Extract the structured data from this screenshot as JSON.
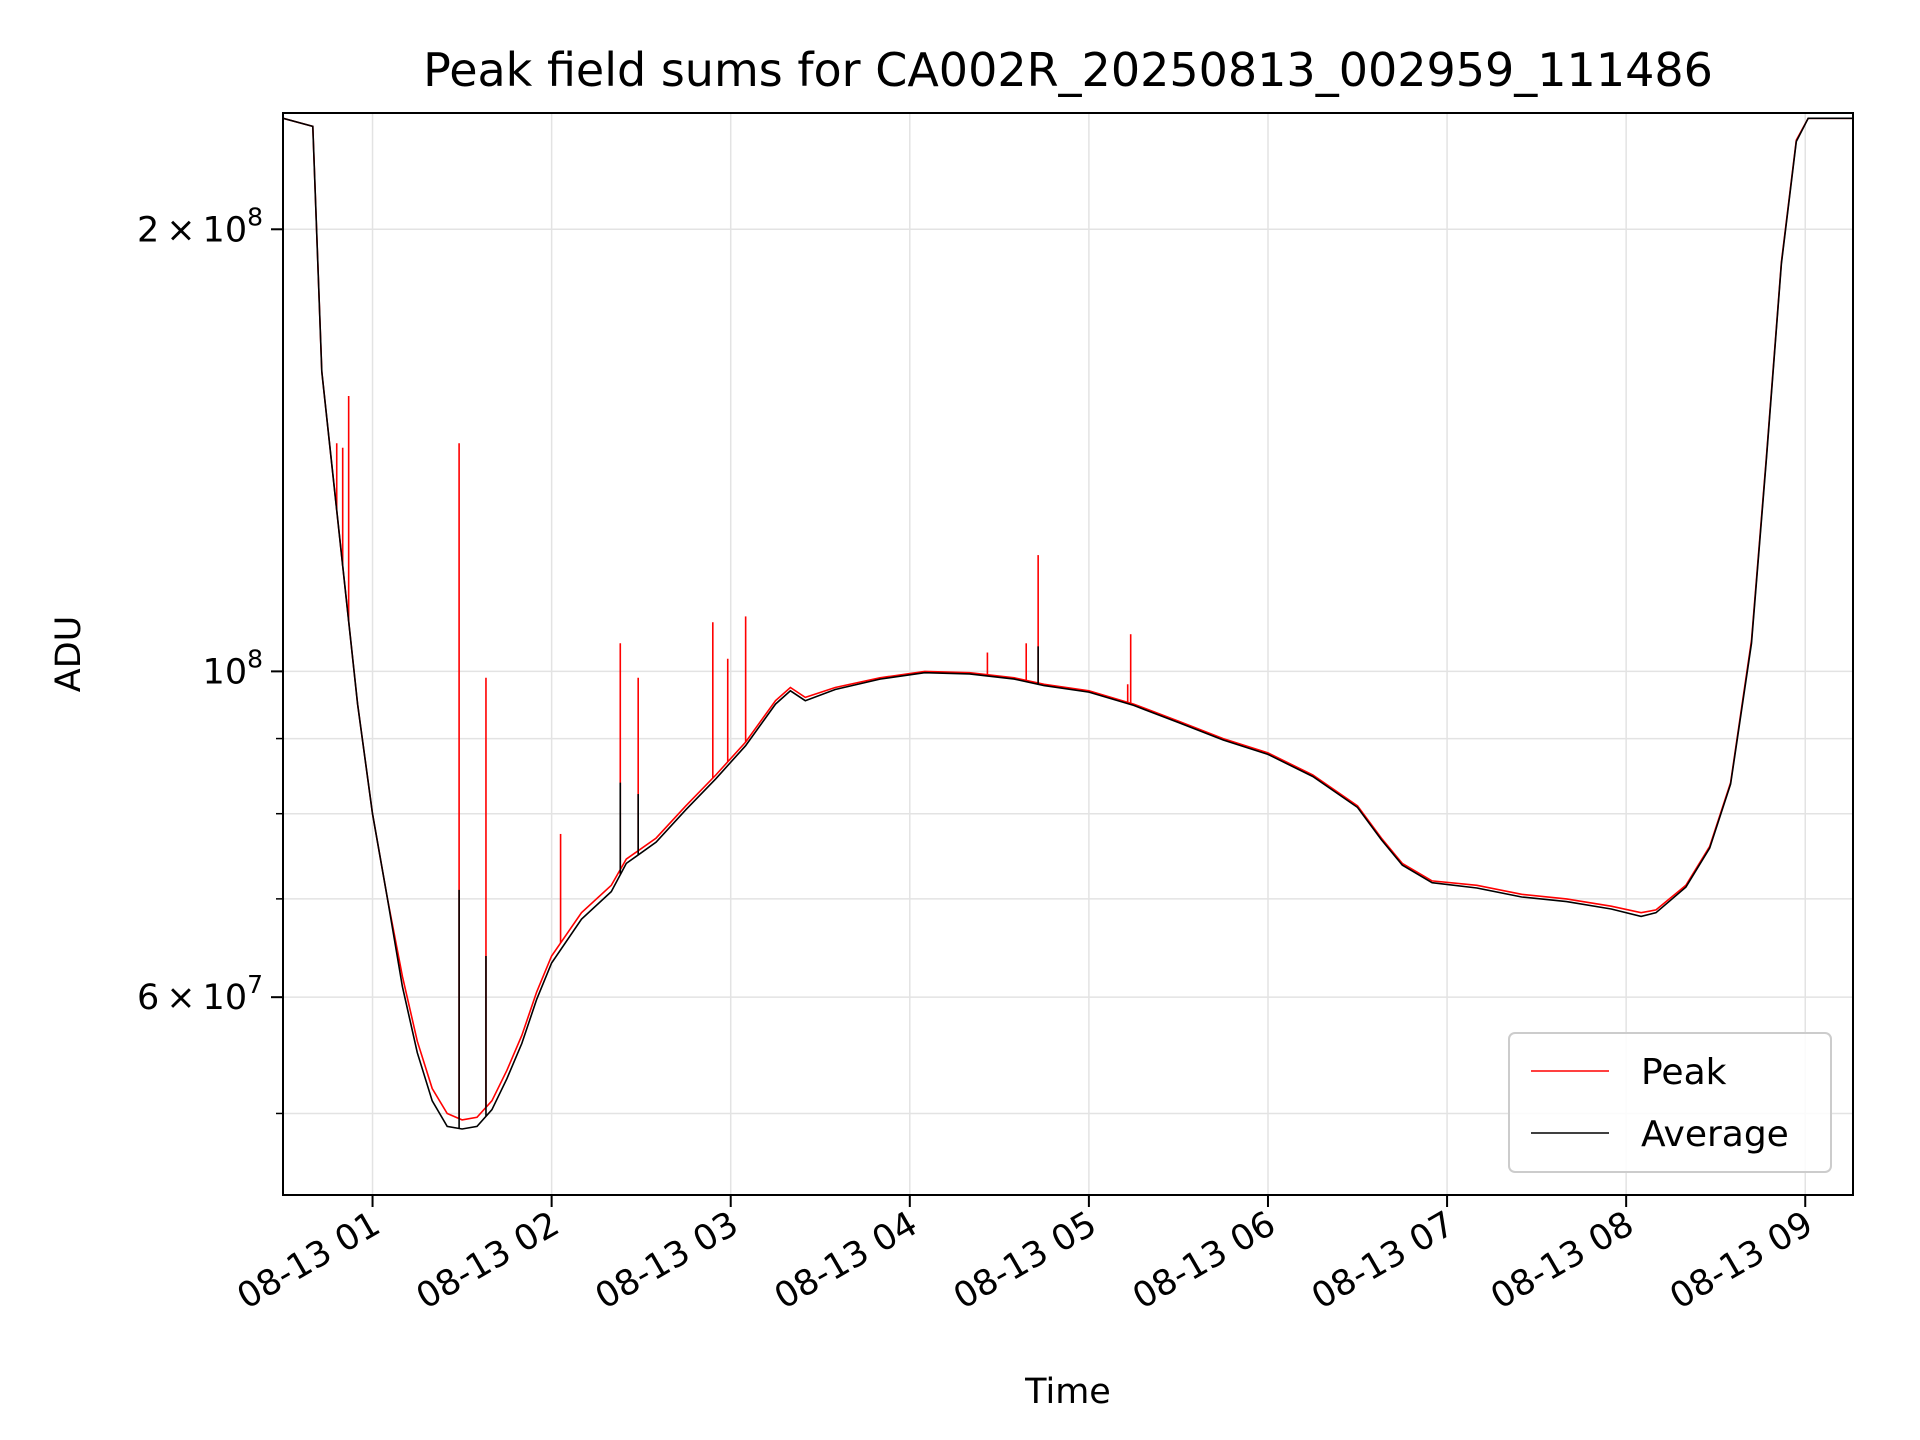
{
  "chart_data": {
    "type": "line",
    "title": "Peak field sums for CA002R_20250813_002959_111486",
    "xlabel": "Time",
    "ylabel": "ADU",
    "xscale": "time",
    "yscale": "log",
    "xlim": [
      "2025-08-13 00:30",
      "2025-08-13 09:16"
    ],
    "ylim": [
      44000000,
      240000000
    ],
    "grid": true,
    "legend_position": "lower-right",
    "x_ticks": [
      "08-13 01",
      "08-13 02",
      "08-13 03",
      "08-13 04",
      "08-13 05",
      "08-13 06",
      "08-13 07",
      "08-13 08",
      "08-13 09"
    ],
    "y_tick_labels": [
      {
        "value": 200000000,
        "mantissa": "2",
        "exp": "8"
      },
      {
        "value": 100000000,
        "mantissa": "",
        "exp": "8"
      },
      {
        "value": 60000000,
        "mantissa": "6",
        "exp": "7"
      }
    ],
    "y_minor_grid": [
      50000000,
      70000000,
      80000000,
      90000000
    ],
    "series": [
      {
        "name": "Peak",
        "color": "#ff0000",
        "points": [
          [
            "00:30",
            238000000
          ],
          [
            "00:40",
            235000000
          ],
          [
            "00:43",
            160000000
          ],
          [
            "00:50",
            118000000
          ],
          [
            "00:55",
            95000000
          ],
          [
            "01:00",
            80000000
          ],
          [
            "01:05",
            70000000
          ],
          [
            "01:10",
            62000000
          ],
          [
            "01:15",
            56000000
          ],
          [
            "01:20",
            52000000
          ],
          [
            "01:25",
            50000000
          ],
          [
            "01:30",
            49500000
          ],
          [
            "01:35",
            49700000
          ],
          [
            "01:40",
            51000000
          ],
          [
            "01:45",
            53500000
          ],
          [
            "01:50",
            56500000
          ],
          [
            "01:55",
            60500000
          ],
          [
            "02:00",
            64000000
          ],
          [
            "02:10",
            68500000
          ],
          [
            "02:20",
            71500000
          ],
          [
            "02:25",
            74500000
          ],
          [
            "02:35",
            77000000
          ],
          [
            "02:45",
            81000000
          ],
          [
            "02:55",
            85000000
          ],
          [
            "03:05",
            89500000
          ],
          [
            "03:15",
            95500000
          ],
          [
            "03:20",
            97500000
          ],
          [
            "03:25",
            96000000
          ],
          [
            "03:35",
            97500000
          ],
          [
            "03:50",
            99000000
          ],
          [
            "04:05",
            100000000
          ],
          [
            "04:20",
            99800000
          ],
          [
            "04:35",
            99000000
          ],
          [
            "04:45",
            98000000
          ],
          [
            "05:00",
            97000000
          ],
          [
            "05:15",
            95000000
          ],
          [
            "05:30",
            92500000
          ],
          [
            "05:45",
            90000000
          ],
          [
            "06:00",
            88000000
          ],
          [
            "06:15",
            85000000
          ],
          [
            "06:30",
            81000000
          ],
          [
            "06:38",
            77000000
          ],
          [
            "06:45",
            74000000
          ],
          [
            "06:55",
            72000000
          ],
          [
            "07:10",
            71500000
          ],
          [
            "07:25",
            70500000
          ],
          [
            "07:40",
            70000000
          ],
          [
            "07:55",
            69200000
          ],
          [
            "08:05",
            68500000
          ],
          [
            "08:10",
            68800000
          ],
          [
            "08:20",
            71500000
          ],
          [
            "08:28",
            76000000
          ],
          [
            "08:35",
            84000000
          ],
          [
            "08:42",
            105000000
          ],
          [
            "08:47",
            140000000
          ],
          [
            "08:52",
            190000000
          ],
          [
            "08:57",
            230000000
          ],
          [
            "09:01",
            238000000
          ],
          [
            "09:16",
            238000000
          ]
        ],
        "spikes": [
          [
            "00:48",
            143000000
          ],
          [
            "00:50",
            142000000
          ],
          [
            "00:52",
            154000000
          ],
          [
            "01:29",
            143000000
          ],
          [
            "01:38",
            99000000
          ],
          [
            "02:03",
            77500000
          ],
          [
            "02:23",
            104500000
          ],
          [
            "02:29",
            99000000
          ],
          [
            "02:54",
            108000000
          ],
          [
            "02:59",
            102000000
          ],
          [
            "03:05",
            109000000
          ],
          [
            "04:26",
            103000000
          ],
          [
            "04:39",
            104500000
          ],
          [
            "04:43",
            120000000
          ],
          [
            "05:13",
            98000000
          ],
          [
            "05:14",
            106000000
          ]
        ]
      },
      {
        "name": "Average",
        "color": "#000000",
        "points": [
          [
            "00:30",
            238000000
          ],
          [
            "00:40",
            235000000
          ],
          [
            "00:43",
            160000000
          ],
          [
            "00:50",
            118000000
          ],
          [
            "00:55",
            95000000
          ],
          [
            "01:00",
            80000000
          ],
          [
            "01:05",
            70000000
          ],
          [
            "01:10",
            61000000
          ],
          [
            "01:15",
            55000000
          ],
          [
            "01:20",
            51000000
          ],
          [
            "01:25",
            49000000
          ],
          [
            "01:30",
            48800000
          ],
          [
            "01:35",
            49000000
          ],
          [
            "01:40",
            50300000
          ],
          [
            "01:45",
            52800000
          ],
          [
            "01:50",
            55800000
          ],
          [
            "01:55",
            59800000
          ],
          [
            "02:00",
            63300000
          ],
          [
            "02:10",
            67800000
          ],
          [
            "02:20",
            70800000
          ],
          [
            "02:25",
            74000000
          ],
          [
            "02:35",
            76500000
          ],
          [
            "02:45",
            80500000
          ],
          [
            "02:55",
            84500000
          ],
          [
            "03:05",
            89000000
          ],
          [
            "03:15",
            95000000
          ],
          [
            "03:20",
            97000000
          ],
          [
            "03:25",
            95500000
          ],
          [
            "03:35",
            97200000
          ],
          [
            "03:50",
            98800000
          ],
          [
            "04:05",
            99800000
          ],
          [
            "04:20",
            99600000
          ],
          [
            "04:35",
            98800000
          ],
          [
            "04:45",
            97800000
          ],
          [
            "05:00",
            96800000
          ],
          [
            "05:15",
            94800000
          ],
          [
            "05:30",
            92300000
          ],
          [
            "05:45",
            89800000
          ],
          [
            "06:00",
            87800000
          ],
          [
            "06:15",
            84800000
          ],
          [
            "06:30",
            80800000
          ],
          [
            "06:38",
            76800000
          ],
          [
            "06:45",
            73800000
          ],
          [
            "06:55",
            71800000
          ],
          [
            "07:10",
            71200000
          ],
          [
            "07:25",
            70200000
          ],
          [
            "07:40",
            69700000
          ],
          [
            "07:55",
            68900000
          ],
          [
            "08:05",
            68100000
          ],
          [
            "08:10",
            68500000
          ],
          [
            "08:20",
            71300000
          ],
          [
            "08:28",
            75800000
          ],
          [
            "08:35",
            83800000
          ],
          [
            "08:42",
            104500000
          ],
          [
            "08:47",
            139500000
          ],
          [
            "08:52",
            189500000
          ],
          [
            "08:57",
            229500000
          ],
          [
            "09:01",
            238000000
          ],
          [
            "09:16",
            238000000
          ]
        ],
        "spikes": [
          [
            "01:29",
            71000000
          ],
          [
            "01:38",
            64000000
          ],
          [
            "02:23",
            84000000
          ],
          [
            "02:29",
            82500000
          ],
          [
            "04:43",
            104000000
          ]
        ]
      }
    ]
  }
}
